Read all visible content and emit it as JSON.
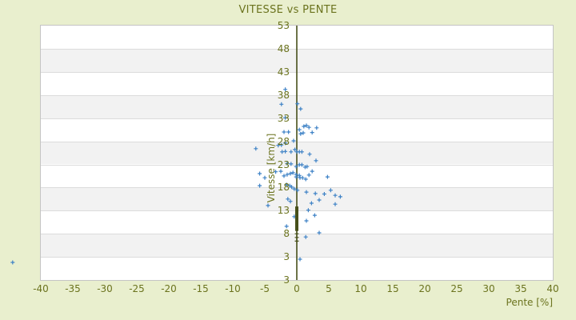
{
  "title": "VITESSE vs PENTE",
  "chart_data": {
    "type": "scatter",
    "title": "VITESSE vs PENTE",
    "xlabel": "Pente [%]",
    "ylabel": "Vitesse [km/h]",
    "xlim": [
      -40,
      40
    ],
    "ylim": [
      -2,
      53
    ],
    "x_ticks": [
      -40,
      -35,
      -30,
      -25,
      -20,
      -15,
      -10,
      -5,
      0,
      5,
      10,
      15,
      20,
      25,
      30,
      35,
      40
    ],
    "y_ticks": [
      53,
      48,
      43,
      38,
      33,
      28,
      23,
      18,
      13,
      8,
      3
    ],
    "y_axis_min_label": {
      "value": -2,
      "label": "3"
    },
    "grid": "horizontal-bands",
    "legend": "none",
    "zero_axis_line": {
      "x": 0
    },
    "series": [
      {
        "name": "vitesse-points",
        "marker": "plus",
        "color": "#3e82c6",
        "points": [
          [
            -44.4,
            1.8
          ],
          [
            -1.8,
            39.2
          ],
          [
            -2.4,
            36.0
          ],
          [
            0.1,
            36.1
          ],
          [
            0.6,
            35.0
          ],
          [
            -1.8,
            33.1
          ],
          [
            1.1,
            31.2
          ],
          [
            1.5,
            31.4
          ],
          [
            1.9,
            31.0
          ],
          [
            3.1,
            30.9
          ],
          [
            -2.0,
            30.0
          ],
          [
            -1.3,
            30.0
          ],
          [
            0.4,
            30.5
          ],
          [
            0.6,
            29.6
          ],
          [
            1.0,
            29.8
          ],
          [
            2.4,
            29.9
          ],
          [
            -0.5,
            28.1
          ],
          [
            -1.8,
            27.6
          ],
          [
            -2.4,
            27.2
          ],
          [
            -2.9,
            27.1
          ],
          [
            -6.4,
            26.4
          ],
          [
            -0.3,
            26.2
          ],
          [
            -2.3,
            25.7
          ],
          [
            -1.8,
            25.8
          ],
          [
            -0.9,
            25.7
          ],
          [
            0.0,
            25.7
          ],
          [
            0.4,
            25.7
          ],
          [
            0.8,
            25.7
          ],
          [
            2.0,
            25.2
          ],
          [
            3.0,
            23.8
          ],
          [
            -1.5,
            23.2
          ],
          [
            -0.9,
            23.1
          ],
          [
            -0.1,
            22.5
          ],
          [
            0.4,
            22.9
          ],
          [
            0.8,
            22.9
          ],
          [
            1.3,
            22.4
          ],
          [
            1.6,
            22.5
          ],
          [
            2.4,
            21.5
          ],
          [
            -5.8,
            21.0
          ],
          [
            -5.0,
            20.1
          ],
          [
            -3.3,
            21.4
          ],
          [
            -2.5,
            21.5
          ],
          [
            -2.0,
            20.5
          ],
          [
            -1.5,
            20.8
          ],
          [
            -1.0,
            21.0
          ],
          [
            -0.6,
            21.2
          ],
          [
            -0.1,
            20.8
          ],
          [
            -0.1,
            20.3
          ],
          [
            0.4,
            20.6
          ],
          [
            0.5,
            20.1
          ],
          [
            0.9,
            20.1
          ],
          [
            1.4,
            19.8
          ],
          [
            1.9,
            20.7
          ],
          [
            4.8,
            20.3
          ],
          [
            -5.8,
            18.4
          ],
          [
            -1.6,
            18.6
          ],
          [
            -1.1,
            18.4
          ],
          [
            -0.8,
            18.1
          ],
          [
            -0.4,
            17.7
          ],
          [
            0.1,
            17.4
          ],
          [
            1.5,
            17.0
          ],
          [
            2.9,
            16.7
          ],
          [
            5.3,
            17.4
          ],
          [
            4.3,
            16.6
          ],
          [
            6.0,
            16.3
          ],
          [
            6.8,
            16.0
          ],
          [
            -4.5,
            14.1
          ],
          [
            -1.4,
            15.5
          ],
          [
            -1.0,
            15.0
          ],
          [
            2.3,
            14.6
          ],
          [
            3.5,
            15.3
          ],
          [
            6.0,
            14.4
          ],
          [
            1.8,
            13.1
          ],
          [
            2.8,
            12.0
          ],
          [
            -0.4,
            11.7
          ],
          [
            1.5,
            10.8
          ],
          [
            -1.6,
            9.6
          ],
          [
            3.5,
            8.2
          ],
          [
            1.4,
            7.3
          ],
          [
            0.5,
            2.5
          ]
        ]
      },
      {
        "name": "zero-line-stack",
        "marker": "plus",
        "color": "#47501a",
        "points": [
          [
            0,
            8.0
          ],
          [
            0,
            7.2
          ],
          [
            0,
            6.4
          ]
        ],
        "dense_bar": {
          "x": 0,
          "y_from": 8.6,
          "y_to": 13.9
        }
      }
    ]
  },
  "colors": {
    "page_bg": "#e9efce",
    "band_light": "#ffffff",
    "band_dark": "#f2f2f2",
    "gridline": "#dcdcdc",
    "plot_border": "#c4c4c4",
    "text": "#6b731e",
    "marker": "#3e82c6",
    "zero_line": "#47501a"
  }
}
